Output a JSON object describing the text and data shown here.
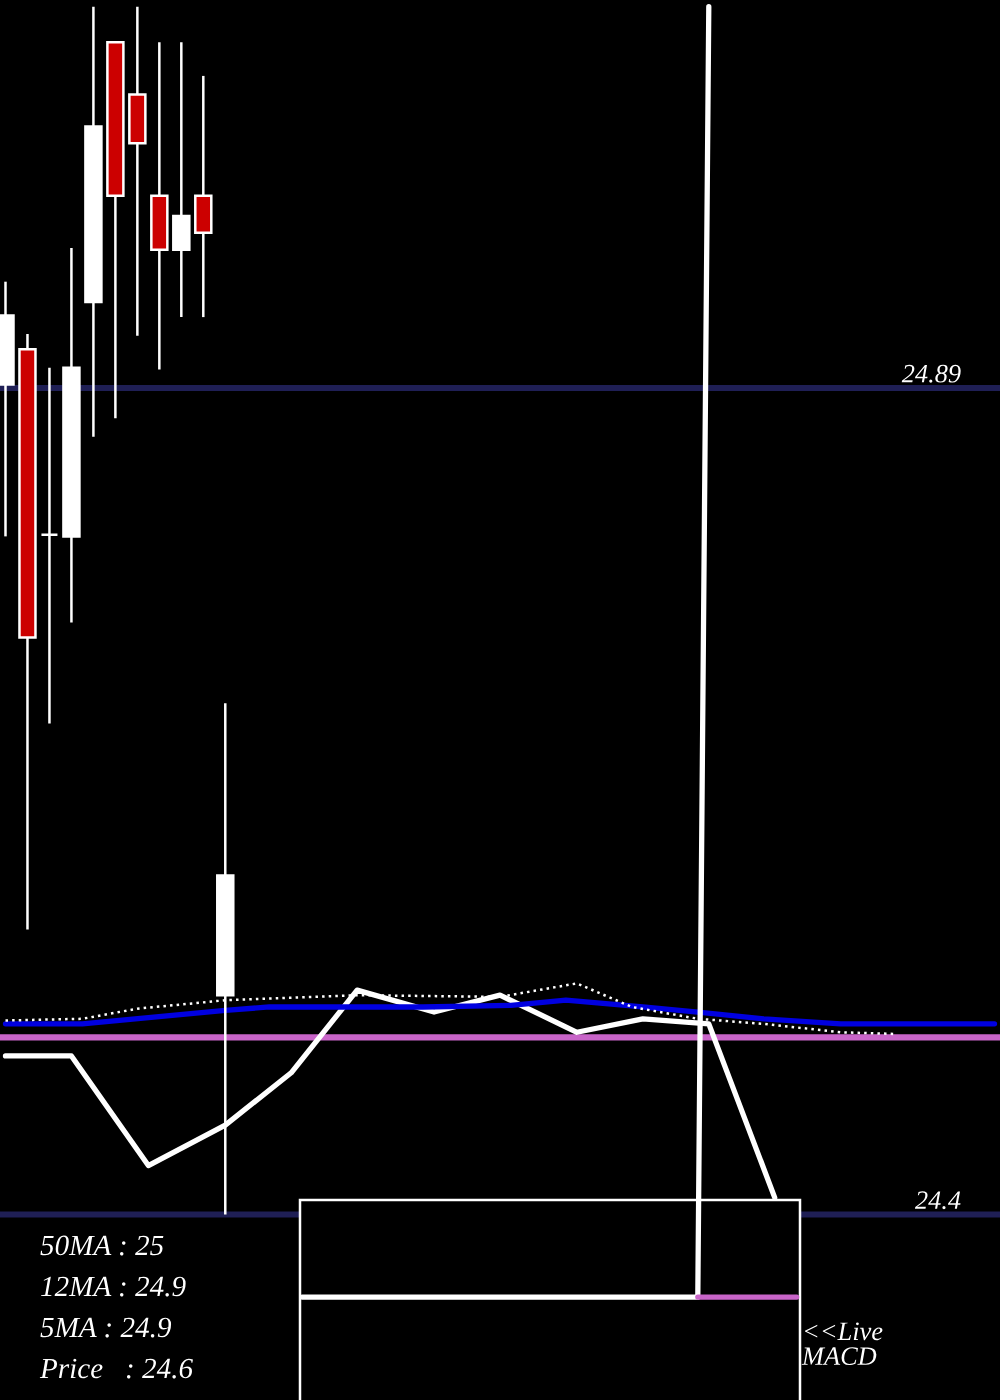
{
  "chart_data": {
    "type": "candlestick",
    "categories": [
      null,
      null,
      null,
      null,
      null,
      null,
      null,
      null,
      null,
      null,
      null,
      null,
      null,
      null,
      null,
      null,
      null,
      null,
      null,
      null,
      null,
      null,
      null,
      null,
      null,
      null,
      null,
      null,
      null,
      null,
      null,
      null,
      null,
      null,
      null,
      null,
      null,
      null,
      null,
      null,
      null,
      null,
      null,
      null,
      null,
      null,
      null,
      null,
      null,
      null,
      null,
      null,
      null,
      null,
      null,
      null,
      null,
      null,
      null,
      null,
      null,
      null,
      null,
      null,
      null,
      null,
      null,
      null,
      null,
      null,
      null,
      null,
      null,
      null,
      null,
      null,
      null,
      null,
      null,
      null,
      null,
      null,
      null,
      null,
      null,
      null,
      null,
      null,
      null,
      null,
      null
    ],
    "ohlc": [
      [
        24.892,
        24.953,
        24.802,
        24.933
      ],
      null,
      [
        24.913,
        24.922,
        24.569,
        24.742
      ],
      null,
      [
        24.803,
        24.902,
        24.691,
        24.803
      ],
      null,
      [
        24.802,
        24.973,
        24.751,
        24.902
      ],
      null,
      [
        24.941,
        25.116,
        24.861,
        25.045
      ],
      null,
      [
        25.095,
        25.095,
        24.872,
        25.004
      ],
      null,
      [
        25.064,
        25.116,
        24.921,
        25.035
      ],
      null,
      [
        25.004,
        25.095,
        24.901,
        24.972
      ],
      null,
      [
        24.972,
        25.095,
        24.932,
        24.992
      ],
      null,
      [
        25.004,
        25.075,
        24.932,
        24.982
      ],
      null,
      [
        24.53,
        24.703,
        24.4,
        24.601
      ],
      null,
      null,
      null,
      null,
      null,
      null,
      null,
      null,
      null,
      null,
      null,
      null,
      null,
      null,
      null,
      null,
      null,
      null,
      null,
      null,
      null,
      null,
      null,
      null,
      null,
      null,
      null,
      null,
      null,
      null,
      null,
      null,
      null,
      null,
      null,
      null,
      null,
      null,
      null,
      null,
      null,
      null,
      null,
      null,
      null,
      null,
      null,
      null,
      null,
      null,
      null,
      null,
      null,
      null,
      null,
      null,
      null,
      null,
      null,
      null,
      null,
      null,
      null,
      null,
      null,
      null,
      null,
      null,
      null,
      null
    ],
    "colors": [
      "#ffffff",
      null,
      "#cc0000",
      null,
      "#ffffff",
      null,
      "#ffffff",
      null,
      "#ffffff",
      null,
      "#cc0000",
      null,
      "#cc0000",
      null,
      "#cc0000",
      null,
      "#ffffff",
      null,
      "#cc0000",
      null,
      "#ffffff",
      null,
      null,
      null,
      null,
      null,
      null,
      null,
      null,
      null,
      null,
      null,
      null,
      null,
      null,
      null,
      null,
      null,
      null,
      null,
      null,
      null,
      null,
      null,
      null,
      null,
      null,
      null,
      null,
      null,
      null,
      null,
      null,
      null,
      null,
      null,
      null,
      null,
      null,
      null,
      null,
      null,
      null,
      null,
      null,
      null,
      null,
      null,
      null,
      null,
      null,
      null,
      null,
      null,
      null,
      null,
      null,
      null,
      null,
      null,
      null,
      null,
      null,
      null,
      null,
      null,
      null,
      null,
      null,
      null,
      null
    ],
    "series": [
      {
        "type": "line",
        "color": "#ffffff",
        "values": [
          24.494,
          null,
          null,
          null,
          null,
          null,
          24.494,
          null,
          null,
          null,
          null,
          null,
          null,
          24.429,
          null,
          null,
          null,
          null,
          null,
          null,
          24.453,
          null,
          null,
          null,
          null,
          null,
          24.484,
          null,
          null,
          null,
          null,
          null,
          24.533,
          null,
          null,
          null,
          null,
          null,
          null,
          24.52,
          null,
          null,
          null,
          null,
          null,
          24.53,
          null,
          null,
          null,
          null,
          null,
          null,
          24.508,
          null,
          null,
          null,
          null,
          null,
          24.516,
          null,
          null,
          null,
          null,
          null,
          24.513,
          null,
          null,
          null,
          null,
          null,
          24.41,
          null,
          null,
          null,
          null,
          null,
          null,
          null,
          null,
          null,
          null,
          null,
          null,
          null,
          null,
          null,
          null,
          null,
          null,
          null,
          null
        ]
      },
      {
        "type": "line",
        "color": "#0000e0",
        "values": [
          24.513,
          null,
          null,
          null,
          null,
          null,
          null,
          24.513,
          null,
          null,
          null,
          null,
          null,
          null,
          null,
          null,
          null,
          null,
          null,
          null,
          24.521,
          null,
          null,
          null,
          24.523,
          null,
          null,
          null,
          null,
          null,
          null,
          null,
          null,
          null,
          null,
          null,
          null,
          null,
          24.523,
          null,
          null,
          null,
          null,
          null,
          null,
          null,
          24.524,
          null,
          null,
          null,
          null,
          24.527,
          null,
          null,
          null,
          null,
          null,
          null,
          24.523,
          null,
          null,
          null,
          null,
          24.52,
          null,
          null,
          null,
          null,
          null,
          24.516,
          null,
          null,
          null,
          null,
          null,
          null,
          24.513,
          null,
          null,
          null,
          null,
          null,
          null,
          null,
          null,
          null,
          null,
          null,
          null,
          null,
          24.513
        ]
      },
      {
        "type": "line",
        "color": "#ffffff",
        "line_style": "dotted",
        "values": [
          24.515,
          null,
          null,
          null,
          null,
          null,
          null,
          24.516,
          null,
          null,
          null,
          null,
          24.522,
          null,
          null,
          null,
          null,
          null,
          null,
          null,
          24.527,
          null,
          null,
          null,
          null,
          null,
          null,
          null,
          null,
          null,
          null,
          null,
          24.53,
          null,
          null,
          null,
          null,
          null,
          null,
          null,
          null,
          null,
          null,
          null,
          null,
          24.529,
          null,
          null,
          null,
          null,
          null,
          null,
          24.537,
          null,
          null,
          null,
          null,
          24.523,
          null,
          null,
          null,
          null,
          null,
          24.516,
          null,
          null,
          null,
          null,
          null,
          24.513,
          null,
          null,
          null,
          null,
          null,
          null,
          24.508,
          null,
          null,
          null,
          null,
          24.507,
          null,
          null,
          null,
          null,
          null,
          null,
          null,
          null,
          null
        ]
      },
      {
        "type": "line",
        "color": "#ffffff",
        "values": [
          null,
          null,
          null,
          null,
          null,
          null,
          null,
          null,
          null,
          null,
          null,
          null,
          null,
          null,
          null,
          null,
          null,
          null,
          null,
          null,
          null,
          null,
          null,
          null,
          null,
          null,
          null,
          24.351,
          null,
          null,
          null,
          null,
          null,
          null,
          null,
          null,
          null,
          null,
          null,
          null,
          null,
          null,
          null,
          null,
          null,
          null,
          null,
          null,
          null,
          null,
          null,
          null,
          null,
          null,
          null,
          null,
          null,
          null,
          null,
          null,
          null,
          null,
          null,
          24.351,
          25.116,
          null,
          null,
          null,
          null,
          null,
          null,
          null,
          null,
          null,
          null,
          null,
          null,
          null,
          null,
          null,
          null,
          null,
          null,
          null,
          null,
          null,
          null,
          null,
          null,
          null,
          null
        ]
      },
      {
        "type": "line",
        "color": "#c864c8",
        "values": [
          null,
          null,
          null,
          null,
          null,
          null,
          null,
          null,
          null,
          null,
          null,
          null,
          null,
          null,
          null,
          null,
          null,
          null,
          null,
          null,
          null,
          null,
          null,
          null,
          null,
          null,
          null,
          null,
          null,
          null,
          null,
          null,
          null,
          null,
          null,
          null,
          null,
          null,
          null,
          null,
          null,
          null,
          null,
          null,
          null,
          null,
          null,
          null,
          null,
          null,
          null,
          null,
          null,
          null,
          null,
          null,
          null,
          null,
          null,
          null,
          null,
          null,
          null,
          24.351,
          null,
          null,
          null,
          null,
          null,
          null,
          null,
          null,
          24.351,
          null,
          null,
          null,
          null,
          null,
          null,
          null,
          null,
          null,
          null,
          null,
          null,
          null,
          null,
          null,
          null,
          null,
          null
        ]
      }
    ],
    "ref_lines": [
      {
        "axis": "y",
        "value": 24.505,
        "color": "#c864c8"
      }
    ],
    "ylim": [
      24.29,
      25.12
    ],
    "yticks": [
      24.4,
      24.89
    ],
    "tick_labels": "y",
    "grid": "y",
    "annotations": [
      "50MA : 25",
      "12MA : 24.9",
      "5MA : 24.9",
      "Price   : 24.6",
      "<<Live\nMACD"
    ]
  }
}
